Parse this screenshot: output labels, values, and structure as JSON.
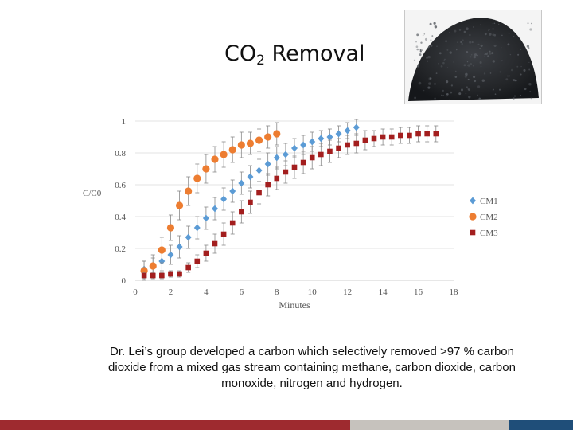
{
  "slide": {
    "title_main": "CO",
    "title_sub": "2",
    "title_rest": " Removal",
    "caption": "Dr. Lei’s group developed a carbon which selectively removed >97 % carbon dioxide from a mixed gas stream containing methane, carbon dioxide, carbon monoxide, nitrogen and hydrogen."
  },
  "colors": {
    "footer_segments": [
      "#9e2a2f",
      "#c6c2bd",
      "#1f4e79"
    ],
    "cm1": "#5b9bd5",
    "cm2": "#ed7d31",
    "cm3": "#a31e1e"
  },
  "chart_data": {
    "type": "scatter",
    "xlabel": "Minutes",
    "ylabel": "C/C0",
    "xlim": [
      0,
      18
    ],
    "ylim": [
      0,
      1
    ],
    "x_ticks": [
      "0",
      "2",
      "4",
      "6",
      "8",
      "10",
      "12",
      "14",
      "16",
      "18"
    ],
    "y_ticks": [
      "0",
      "0.2",
      "0.4",
      "0.6",
      "0.8",
      "1"
    ],
    "grid": "horizontal",
    "legend": "right",
    "error_bars": true,
    "series": [
      {
        "name": "CM1",
        "marker": "diamond",
        "x": [
          0.5,
          1.0,
          1.5,
          2.0,
          2.5,
          3.0,
          3.5,
          4.0,
          4.5,
          5.0,
          5.5,
          6.0,
          6.5,
          7.0,
          7.5,
          8.0,
          8.5,
          9.0,
          9.5,
          10.0,
          10.5,
          11.0,
          11.5,
          12.0,
          12.5
        ],
        "y": [
          0.07,
          0.09,
          0.12,
          0.16,
          0.21,
          0.27,
          0.33,
          0.39,
          0.45,
          0.51,
          0.56,
          0.61,
          0.65,
          0.69,
          0.73,
          0.77,
          0.79,
          0.83,
          0.85,
          0.87,
          0.89,
          0.9,
          0.92,
          0.94,
          0.96
        ],
        "err": [
          0.05,
          0.05,
          0.06,
          0.06,
          0.07,
          0.07,
          0.07,
          0.07,
          0.07,
          0.07,
          0.07,
          0.07,
          0.07,
          0.07,
          0.07,
          0.07,
          0.07,
          0.06,
          0.06,
          0.06,
          0.05,
          0.05,
          0.05,
          0.05,
          0.05
        ]
      },
      {
        "name": "CM2",
        "marker": "circle",
        "x": [
          0.5,
          1.0,
          1.5,
          2.0,
          2.5,
          3.0,
          3.5,
          4.0,
          4.5,
          5.0,
          5.5,
          6.0,
          6.5,
          7.0,
          7.5,
          8.0
        ],
        "y": [
          0.06,
          0.09,
          0.19,
          0.33,
          0.47,
          0.56,
          0.64,
          0.7,
          0.76,
          0.79,
          0.82,
          0.85,
          0.86,
          0.88,
          0.9,
          0.92
        ],
        "err": [
          0.06,
          0.07,
          0.08,
          0.08,
          0.09,
          0.09,
          0.09,
          0.09,
          0.08,
          0.08,
          0.08,
          0.08,
          0.07,
          0.07,
          0.07,
          0.07
        ]
      },
      {
        "name": "CM3",
        "marker": "square",
        "x": [
          0.5,
          1.0,
          1.5,
          2.0,
          2.5,
          3.0,
          3.5,
          4.0,
          4.5,
          5.0,
          5.5,
          6.0,
          6.5,
          7.0,
          7.5,
          8.0,
          8.5,
          9.0,
          9.5,
          10.0,
          10.5,
          11.0,
          11.5,
          12.0,
          12.5,
          13.0,
          13.5,
          14.0,
          14.5,
          15.0,
          15.5,
          16.0,
          16.5,
          17.0
        ],
        "y": [
          0.03,
          0.03,
          0.03,
          0.04,
          0.04,
          0.08,
          0.12,
          0.17,
          0.23,
          0.29,
          0.36,
          0.43,
          0.49,
          0.55,
          0.6,
          0.64,
          0.68,
          0.71,
          0.74,
          0.77,
          0.79,
          0.81,
          0.83,
          0.85,
          0.86,
          0.88,
          0.89,
          0.9,
          0.9,
          0.91,
          0.91,
          0.92,
          0.92,
          0.92
        ],
        "err": [
          0.02,
          0.02,
          0.02,
          0.02,
          0.02,
          0.03,
          0.04,
          0.05,
          0.06,
          0.07,
          0.07,
          0.07,
          0.07,
          0.07,
          0.07,
          0.07,
          0.07,
          0.07,
          0.07,
          0.07,
          0.07,
          0.07,
          0.06,
          0.06,
          0.06,
          0.06,
          0.05,
          0.05,
          0.05,
          0.05,
          0.05,
          0.05,
          0.05,
          0.05
        ]
      }
    ]
  }
}
